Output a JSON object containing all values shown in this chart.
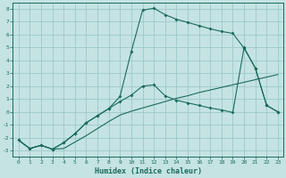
{
  "xlabel": "Humidex (Indice chaleur)",
  "background_color": "#c5e3e3",
  "grid_color": "#9dc8c8",
  "line_color": "#1a6b5a",
  "xlim": [
    -0.5,
    23.5
  ],
  "ylim": [
    -3.5,
    8.5
  ],
  "xtick_vals": [
    0,
    1,
    2,
    3,
    4,
    5,
    6,
    7,
    8,
    9,
    10,
    11,
    12,
    13,
    14,
    15,
    16,
    17,
    18,
    19,
    20,
    21,
    22,
    23
  ],
  "ytick_vals": [
    -3,
    -2,
    -1,
    0,
    1,
    2,
    3,
    4,
    5,
    6,
    7,
    8
  ],
  "curve_flat_x": [
    0,
    1,
    2,
    3,
    4,
    5,
    6,
    7,
    8,
    9,
    10,
    11,
    12,
    13,
    14,
    15,
    16,
    17,
    18,
    19,
    20,
    21,
    22,
    23
  ],
  "curve_flat_y": [
    -2.2,
    -2.85,
    -2.6,
    -2.9,
    -2.85,
    -2.35,
    -1.85,
    -1.3,
    -0.75,
    -0.25,
    0.05,
    0.3,
    0.55,
    0.8,
    1.05,
    1.25,
    1.5,
    1.7,
    1.9,
    2.1,
    2.3,
    2.5,
    2.7,
    2.9
  ],
  "curve_mid_x": [
    0,
    1,
    2,
    3,
    4,
    5,
    6,
    7,
    8,
    9,
    10,
    11,
    12,
    13,
    14,
    15,
    16,
    17,
    18,
    19,
    20,
    21,
    22,
    23
  ],
  "curve_mid_y": [
    -2.2,
    -2.85,
    -2.6,
    -2.9,
    -2.4,
    -1.7,
    -0.85,
    -0.3,
    0.25,
    0.8,
    1.3,
    2.0,
    2.1,
    1.25,
    0.9,
    0.7,
    0.5,
    0.3,
    0.15,
    -0.05,
    5.0,
    3.4,
    0.5,
    0.0
  ],
  "curve_top_x": [
    0,
    1,
    2,
    3,
    4,
    5,
    6,
    7,
    8,
    9,
    10,
    11,
    12,
    13,
    14,
    15,
    16,
    17,
    18,
    19,
    20,
    21,
    22,
    23
  ],
  "curve_top_y": [
    -2.2,
    -2.85,
    -2.6,
    -2.9,
    -2.4,
    -1.7,
    -0.85,
    -0.3,
    0.25,
    1.2,
    4.7,
    7.9,
    8.05,
    7.55,
    7.2,
    6.95,
    6.7,
    6.45,
    6.25,
    6.1,
    4.95,
    3.4,
    0.5,
    0.0
  ]
}
